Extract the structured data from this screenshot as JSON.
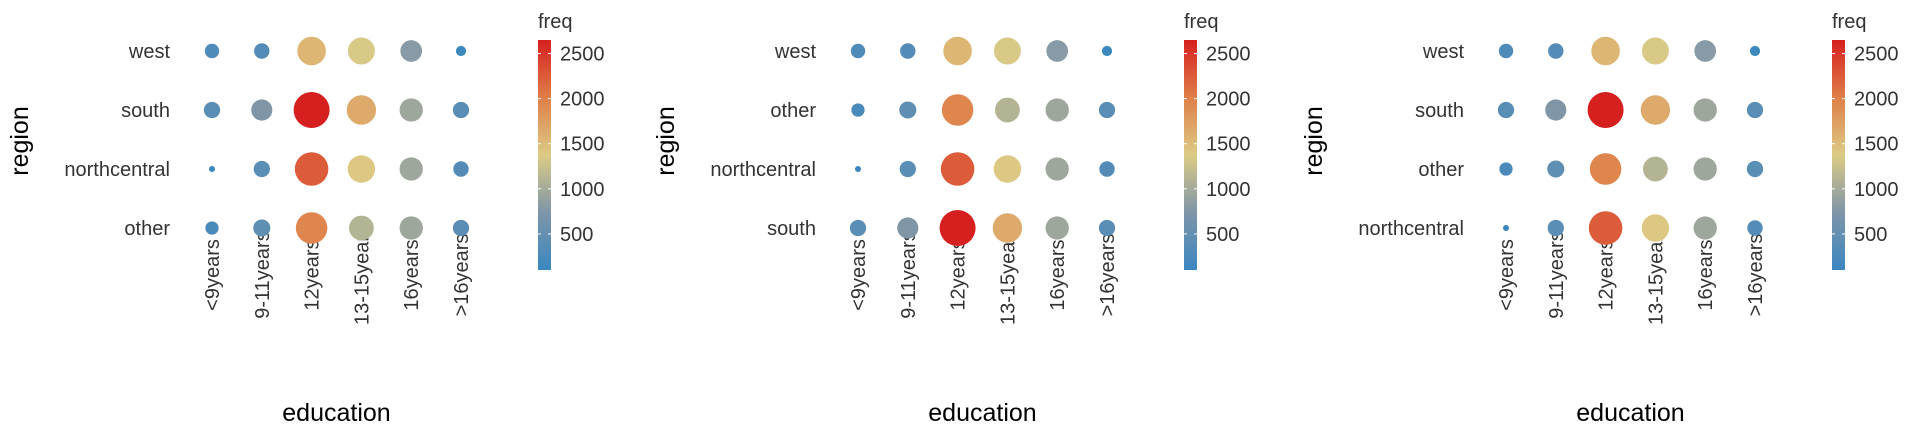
{
  "chart_data": [
    {
      "type": "scatter",
      "title": "",
      "xlabel": "education",
      "ylabel": "region",
      "x_categories": [
        "<9years",
        "9-11years",
        "12years",
        "13-15years",
        "16years",
        ">16years"
      ],
      "y_categories": [
        "west",
        "south",
        "northcentral",
        "other"
      ],
      "freq": [
        [
          300,
          350,
          1550,
          1350,
          800,
          150
        ],
        [
          400,
          750,
          2650,
          1650,
          950,
          400
        ],
        [
          100,
          400,
          2250,
          1400,
          950,
          350
        ],
        [
          250,
          450,
          1950,
          1100,
          950,
          400
        ]
      ],
      "legend": {
        "title": "freq",
        "ticks": [
          500,
          1000,
          1500,
          2000,
          2500
        ],
        "min": 100,
        "max": 2650,
        "position": "right"
      },
      "grid": false
    },
    {
      "type": "scatter",
      "title": "",
      "xlabel": "education",
      "ylabel": "region",
      "x_categories": [
        "<9years",
        "9-11years",
        "12years",
        "13-15years",
        "16years",
        ">16years"
      ],
      "y_categories": [
        "west",
        "other",
        "northcentral",
        "south"
      ],
      "freq": [
        [
          300,
          350,
          1550,
          1350,
          800,
          150
        ],
        [
          250,
          450,
          1950,
          1100,
          950,
          400
        ],
        [
          100,
          400,
          2250,
          1400,
          950,
          350
        ],
        [
          400,
          750,
          2650,
          1650,
          950,
          400
        ]
      ],
      "legend": {
        "title": "freq",
        "ticks": [
          500,
          1000,
          1500,
          2000,
          2500
        ],
        "min": 100,
        "max": 2650,
        "position": "right"
      },
      "grid": false
    },
    {
      "type": "scatter",
      "title": "",
      "xlabel": "education",
      "ylabel": "region",
      "x_categories": [
        "<9years",
        "9-11years",
        "12years",
        "13-15years",
        "16years",
        ">16years"
      ],
      "y_categories": [
        "west",
        "south",
        "other",
        "northcentral"
      ],
      "freq": [
        [
          300,
          350,
          1550,
          1350,
          800,
          150
        ],
        [
          400,
          750,
          2650,
          1650,
          950,
          400
        ],
        [
          250,
          450,
          1950,
          1100,
          950,
          400
        ],
        [
          100,
          400,
          2250,
          1400,
          950,
          350
        ]
      ],
      "legend": {
        "title": "freq",
        "ticks": [
          500,
          1000,
          1500,
          2000,
          2500
        ],
        "min": 100,
        "max": 2650,
        "position": "right"
      },
      "grid": false
    }
  ],
  "colors": {
    "low": "#3a87c0",
    "mid": "#dccb85",
    "high": "#d6201f",
    "text": "#333333",
    "title": "#000000"
  }
}
